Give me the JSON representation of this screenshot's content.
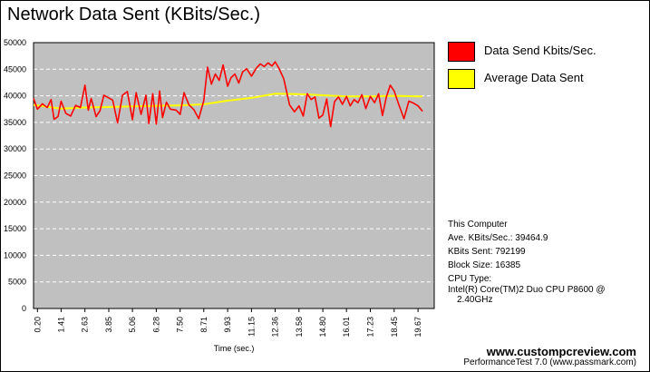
{
  "chart_data": {
    "type": "line",
    "title": "Network Data Sent (KBits/Sec.)",
    "xlabel": "Time (sec.)",
    "ylabel": "",
    "ylim": [
      0,
      50000
    ],
    "xlim": [
      0,
      20.5
    ],
    "yticks": [
      0,
      5000,
      10000,
      15000,
      20000,
      25000,
      30000,
      35000,
      40000,
      45000,
      50000
    ],
    "xticks": [
      "0.20",
      "1.41",
      "2.63",
      "3.85",
      "5.06",
      "6.28",
      "7.50",
      "8.71",
      "9.93",
      "11.15",
      "12.36",
      "13.58",
      "14.80",
      "16.01",
      "17.23",
      "18.45",
      "19.67"
    ],
    "grid": true,
    "background": "#c0c0c0",
    "legend_position": "right",
    "series": [
      {
        "name": "Data Send Kbits/Sec.",
        "color": "#ff0000",
        "x": [
          0.0,
          0.2,
          0.45,
          0.7,
          0.9,
          1.05,
          1.25,
          1.41,
          1.65,
          1.9,
          2.15,
          2.4,
          2.63,
          2.8,
          2.95,
          3.2,
          3.4,
          3.6,
          3.85,
          4.05,
          4.3,
          4.55,
          4.8,
          5.06,
          5.25,
          5.5,
          5.75,
          5.9,
          6.1,
          6.28,
          6.45,
          6.6,
          6.8,
          7.0,
          7.3,
          7.5,
          7.7,
          7.95,
          8.2,
          8.45,
          8.71,
          8.9,
          9.1,
          9.3,
          9.5,
          9.7,
          9.93,
          10.1,
          10.3,
          10.5,
          10.7,
          10.9,
          11.15,
          11.4,
          11.6,
          11.8,
          12.0,
          12.2,
          12.36,
          12.55,
          12.8,
          13.1,
          13.35,
          13.58,
          13.8,
          14.0,
          14.2,
          14.4,
          14.6,
          14.8,
          15.0,
          15.2,
          15.4,
          15.6,
          15.8,
          16.01,
          16.2,
          16.4,
          16.6,
          16.8,
          17.0,
          17.23,
          17.45,
          17.65,
          17.85,
          18.05,
          18.25,
          18.45,
          18.7,
          18.95,
          19.2,
          19.4,
          19.67,
          19.9
        ],
        "values": [
          39500,
          37500,
          38500,
          37800,
          39300,
          35600,
          36100,
          39000,
          36700,
          36200,
          38200,
          37800,
          42000,
          37300,
          39500,
          36100,
          37200,
          40100,
          39600,
          39200,
          34900,
          40100,
          40800,
          35500,
          40600,
          36500,
          40100,
          34800,
          40400,
          34700,
          40900,
          35900,
          38800,
          37500,
          37300,
          36500,
          40600,
          38300,
          37400,
          35700,
          39100,
          45400,
          42200,
          44100,
          42900,
          45800,
          41800,
          43400,
          44100,
          42400,
          44500,
          45100,
          43700,
          45200,
          46000,
          45500,
          46200,
          45600,
          46400,
          45200,
          43200,
          38300,
          37000,
          38100,
          36200,
          40400,
          39300,
          39800,
          35800,
          36400,
          39400,
          34200,
          38900,
          39800,
          38400,
          39900,
          38100,
          39300,
          38700,
          40200,
          37600,
          39900,
          38700,
          40400,
          36300,
          39800,
          42000,
          40900,
          38200,
          35700,
          39000,
          38700,
          38100,
          37100
        ]
      },
      {
        "name": "Average Data Sent",
        "color": "#ffff00",
        "x": [
          0.0,
          1.41,
          2.63,
          5.06,
          7.5,
          8.71,
          9.93,
          11.15,
          12.36,
          13.58,
          14.8,
          16.01,
          17.23,
          18.45,
          19.67,
          19.9
        ],
        "values": [
          38300,
          37600,
          37800,
          38000,
          38200,
          38400,
          39100,
          39600,
          40400,
          40300,
          40100,
          39900,
          39900,
          40000,
          39900,
          39900
        ]
      }
    ]
  },
  "info": {
    "header": "This Computer",
    "ave": "Ave. KBits/Sec.: 39464.9",
    "sent": "KBits Sent: 792199",
    "block": "Block Size: 16385",
    "cpu_label": "CPU Type:",
    "cpu_line1": "Intel(R) Core(TM)2 Duo CPU P8600 @",
    "cpu_line2": "2.40GHz"
  },
  "footer": {
    "site": "www.custompcreview.com",
    "product": "PerformanceTest 7.0 (www.passmark.com)"
  }
}
